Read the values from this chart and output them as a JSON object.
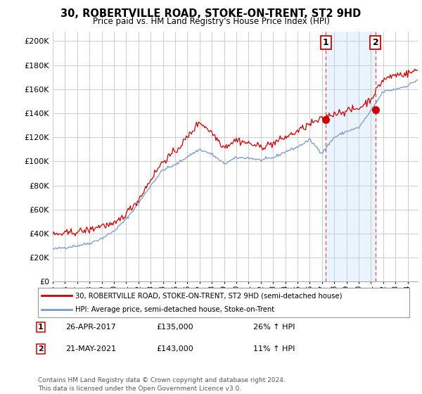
{
  "title": "30, ROBERTVILLE ROAD, STOKE-ON-TRENT, ST2 9HD",
  "subtitle": "Price paid vs. HM Land Registry's House Price Index (HPI)",
  "ylabel_ticks": [
    "£0",
    "£20K",
    "£40K",
    "£60K",
    "£80K",
    "£100K",
    "£120K",
    "£140K",
    "£160K",
    "£180K",
    "£200K"
  ],
  "ytick_values": [
    0,
    20000,
    40000,
    60000,
    80000,
    100000,
    120000,
    140000,
    160000,
    180000,
    200000
  ],
  "ylim": [
    0,
    208000
  ],
  "xlim_start": 1995.0,
  "xlim_end": 2024.83,
  "line1_color": "#cc0000",
  "line2_color": "#7799cc",
  "line1_label": "30, ROBERTVILLE ROAD, STOKE-ON-TRENT, ST2 9HD (semi-detached house)",
  "line2_label": "HPI: Average price, semi-detached house, Stoke-on-Trent",
  "marker1_date": 2017.32,
  "marker1_value": 135000,
  "marker2_date": 2021.38,
  "marker2_value": 143000,
  "annotation1_label": "1",
  "annotation2_label": "2",
  "note1_date": "26-APR-2017",
  "note1_price": "£135,000",
  "note1_hpi": "26% ↑ HPI",
  "note2_date": "21-MAY-2021",
  "note2_price": "£143,000",
  "note2_hpi": "11% ↑ HPI",
  "footer": "Contains HM Land Registry data © Crown copyright and database right 2024.\nThis data is licensed under the Open Government Licence v3.0.",
  "vline1_x": 2017.32,
  "vline2_x": 2021.38,
  "bg_color": "#ffffff",
  "plot_bg_color": "#ffffff",
  "grid_color": "#cccccc",
  "sale_marker_color": "#cc0000",
  "xlabel_years": [
    1995,
    1996,
    1997,
    1998,
    1999,
    2000,
    2001,
    2002,
    2003,
    2004,
    2005,
    2006,
    2007,
    2008,
    2009,
    2010,
    2011,
    2012,
    2013,
    2014,
    2015,
    2016,
    2017,
    2018,
    2019,
    2020,
    2021,
    2022,
    2023,
    2024
  ],
  "highlight_bg_color": "#ddeeff",
  "ann_box_color": "#cc0000"
}
